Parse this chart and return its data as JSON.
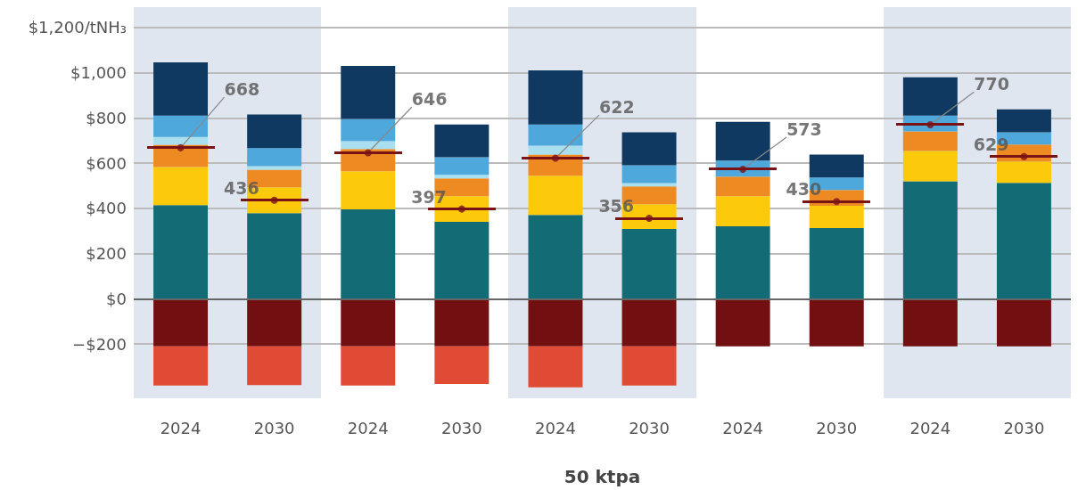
{
  "chart_data": {
    "type": "bar",
    "stacked": true,
    "xlabel": "50 ktpa",
    "categories": [
      "2024",
      "2030",
      "2024",
      "2030",
      "2024",
      "2030",
      "2024",
      "2030",
      "2024",
      "2030"
    ],
    "series": [
      {
        "color": "#136b75",
        "values": [
          414,
          379,
          395,
          340,
          371,
          309,
          321,
          313,
          520,
          513
        ]
      },
      {
        "color": "#fcc90b",
        "values": [
          169,
          114,
          169,
          114,
          173,
          109,
          133,
          98,
          134,
          94
        ]
      },
      {
        "color": "#ee8a22",
        "values": [
          98,
          78,
          98,
          78,
          94,
          79,
          86,
          70,
          86,
          75
        ]
      },
      {
        "color": "#aadff0",
        "values": [
          35,
          16,
          35,
          16,
          39,
          15,
          null,
          null,
          null,
          null
        ]
      },
      {
        "color": "#4ea8dc",
        "values": [
          94,
          79,
          98,
          78,
          94,
          79,
          71,
          55,
          70,
          54
        ]
      },
      {
        "color": "#0f3961",
        "values": [
          236,
          149,
          235,
          145,
          239,
          145,
          172,
          102,
          170,
          102
        ]
      },
      {
        "color": "#721011",
        "values": [
          -210,
          -210,
          -210,
          -210,
          -210,
          -210,
          -210,
          -210,
          -210,
          -210
        ]
      },
      {
        "color": "#e04b35",
        "values": [
          -174,
          -172,
          -174,
          -167,
          -182,
          -174,
          null,
          null,
          null,
          null
        ]
      },
      {
        "type": "scatter",
        "color": "#7a1315",
        "values": [
          668,
          436,
          646,
          397,
          622,
          356,
          573,
          430,
          770,
          629
        ],
        "value_labels": [
          "668",
          "436",
          "646",
          "397",
          "622",
          "356",
          "573",
          "430",
          "770",
          "629"
        ]
      }
    ],
    "ylim": [
      -440,
      1290
    ],
    "yticks": [
      {
        "value": -200,
        "label": "−$200"
      },
      {
        "value": 0,
        "label": "$0"
      },
      {
        "value": 200,
        "label": "$200"
      },
      {
        "value": 400,
        "label": "$400"
      },
      {
        "value": 600,
        "label": "$600"
      },
      {
        "value": 800,
        "label": "$800"
      },
      {
        "value": 1000,
        "label": "$1,000"
      },
      {
        "value": 1200,
        "label": "$1,200/tNH₃"
      }
    ],
    "ref_lines": [
      {
        "axis": "y",
        "value": 0,
        "color": "#666666"
      }
    ],
    "grid": "y"
  }
}
